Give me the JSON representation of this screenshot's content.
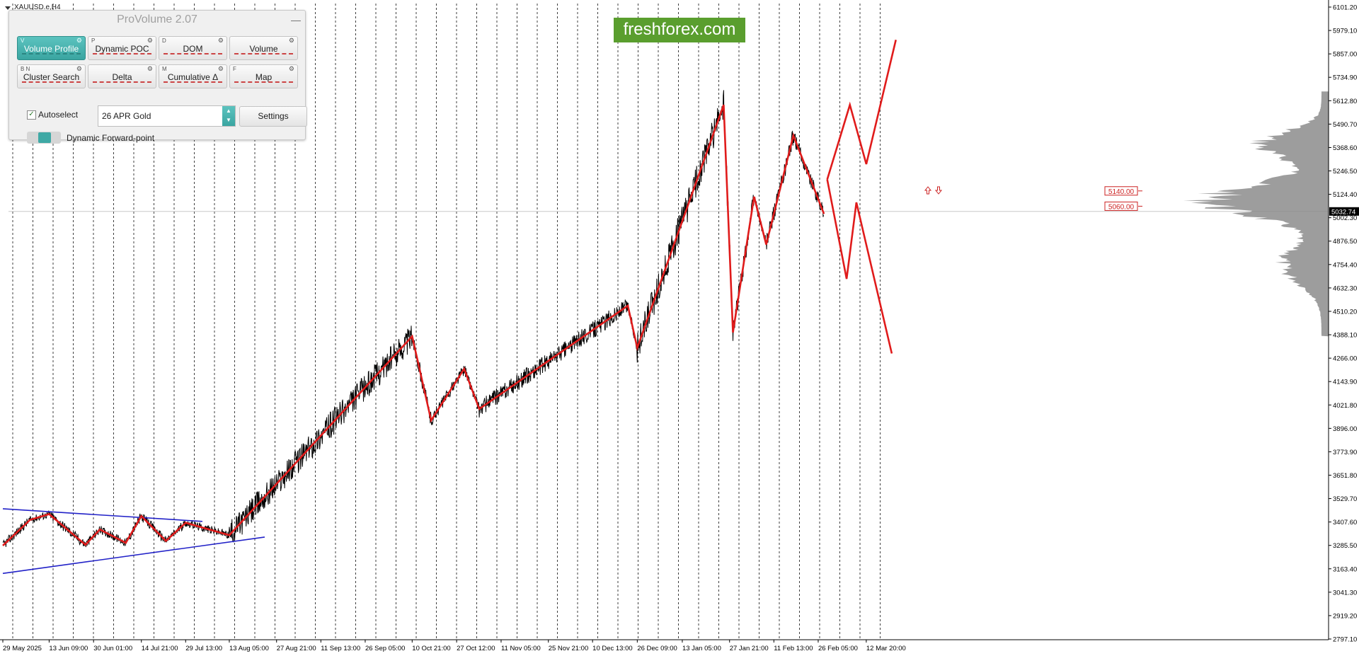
{
  "symbol": "XAUUSD.e,H4",
  "banner": "freshforex.com",
  "panel": {
    "title": "ProVolume 2.07",
    "minimize": "—",
    "buttons": [
      {
        "hotkey": "V",
        "label": "Volume Profile",
        "active": true
      },
      {
        "hotkey": "P",
        "label": "Dynamic POC",
        "active": false
      },
      {
        "hotkey": "D",
        "label": "DOM",
        "active": false
      },
      {
        "hotkey": "",
        "label": "Volume",
        "active": false
      },
      {
        "hotkey": "B  N",
        "label": "Cluster Search",
        "active": false
      },
      {
        "hotkey": "",
        "label": "Delta",
        "active": false
      },
      {
        "hotkey": "M",
        "label": "Cumulative Δ",
        "active": false
      },
      {
        "hotkey": "F",
        "label": "Map",
        "active": false
      }
    ],
    "autoselect_label": "Autoselect",
    "autoselect_checked": true,
    "instrument": "26 APR Gold",
    "settings_label": "Settings",
    "forward_label": "Dynamic Forward-point"
  },
  "price_axis": {
    "ticks": [
      "6101.20",
      "5979.10",
      "5857.00",
      "5734.90",
      "5612.80",
      "5490.70",
      "5368.60",
      "5246.50",
      "5124.40",
      "5002.30",
      "4876.50",
      "4754.40",
      "4632.30",
      "4510.20",
      "4388.10",
      "4266.00",
      "4143.90",
      "4021.80",
      "3896.00",
      "3773.90",
      "3651.80",
      "3529.70",
      "3407.60",
      "3285.50",
      "3163.40",
      "3041.30",
      "2919.20",
      "2797.10"
    ],
    "current_price": "5032.74"
  },
  "time_axis": {
    "labels": [
      "29 May 2025",
      "13 Jun 09:00",
      "30 Jun 01:00",
      "14 Jul 21:00",
      "29 Jul 13:00",
      "13 Aug 05:00",
      "27 Aug 21:00",
      "11 Sep 13:00",
      "26 Sep 05:00",
      "10 Oct 21:00",
      "27 Oct 12:00",
      "11 Nov 05:00",
      "25 Nov 21:00",
      "10 Dec 13:00",
      "26 Dec 09:00",
      "13 Jan 05:00",
      "27 Jan 21:00",
      "11 Feb 13:00",
      "26 Feb 05:00",
      "12 Mar 20:00"
    ]
  },
  "levels": [
    {
      "label": "5140.00",
      "price": 5140.0
    },
    {
      "label": "5060.00",
      "price": 5060.0
    }
  ],
  "colors": {
    "zigzag": "#e01b1b",
    "triangle": "#2222c8",
    "price": "#000000",
    "grid": "#000000",
    "profile": "#8c8c8c",
    "level": "#cc2222",
    "panel_accent": "#3fa9a5",
    "banner": "#5a9e2e"
  },
  "chart_data": {
    "type": "line",
    "title": "",
    "xlabel": "",
    "ylabel": "",
    "ylim": [
      2797.1,
      6101.2
    ],
    "series": [
      {
        "values": [
          [
            "29 May 2025",
            3285.5
          ],
          [
            "7 Jun",
            3420
          ],
          [
            "13 Jun 09:00",
            3450
          ],
          [
            "27 Jun",
            3290
          ],
          [
            "2 Jul",
            3370
          ],
          [
            "10 Jul",
            3300
          ],
          [
            "14 Jul 21:00",
            3440
          ],
          [
            "23 Jul",
            3310
          ],
          [
            "29 Jul 13:00",
            3405
          ],
          [
            "13 Aug 05:00",
            3340
          ],
          [
            "10 Oct 21:00",
            4380
          ],
          [
            "18 Oct",
            3940
          ],
          [
            "30 Oct",
            4210
          ],
          [
            "4 Nov",
            4000
          ],
          [
            "23 Dec",
            4540
          ],
          [
            "26 Dec 09:00",
            4320
          ],
          [
            "26 Jan",
            5590
          ],
          [
            "29 Jan",
            4400
          ],
          [
            "5 Feb",
            5110
          ],
          [
            "9 Feb",
            4860
          ],
          [
            "18 Feb",
            5430
          ],
          [
            "28 Feb",
            5020
          ]
        ]
      },
      {
        "values": [
          [
            "1 Mar",
            5200
          ],
          [
            "8 Mar",
            5590
          ],
          [
            "12 Mar 20:00",
            5280
          ],
          [
            "20 Mar",
            5930
          ]
        ]
      },
      {
        "values": [
          [
            "1 Mar",
            5200
          ],
          [
            "7 Mar",
            4680
          ],
          [
            "10 Mar",
            5080
          ],
          [
            "19 Mar",
            4290
          ]
        ]
      }
    ]
  }
}
